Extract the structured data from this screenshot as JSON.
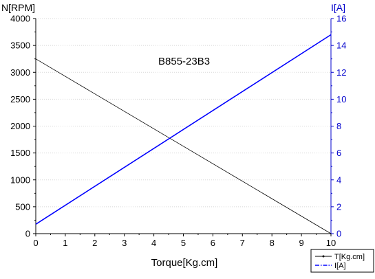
{
  "chart_data": {
    "type": "line",
    "title": "B855-23B3",
    "xlabel": "Torque[Kg.cm]",
    "ylabel": "N[RPM]",
    "y2label": "I[A]",
    "xlim": [
      0,
      10
    ],
    "ylim": [
      0,
      4000
    ],
    "y2lim": [
      0,
      16
    ],
    "x_ticks": [
      0,
      1,
      2,
      3,
      4,
      5,
      6,
      7,
      8,
      9,
      10
    ],
    "y_ticks": [
      0,
      500,
      1000,
      1500,
      2000,
      2500,
      3000,
      3500,
      4000
    ],
    "y2_ticks": [
      0,
      2,
      4,
      6,
      8,
      10,
      12,
      14,
      16
    ],
    "grid": true,
    "legend_position": "bottom-right",
    "series": [
      {
        "name": "T[Kg.cm]",
        "axis": "left",
        "color": "#000000",
        "x": [
          0,
          10
        ],
        "y": [
          3250,
          0
        ]
      },
      {
        "name": "I[A]",
        "axis": "right",
        "color": "#0000ff",
        "x": [
          0,
          10
        ],
        "y": [
          0.7,
          14.8
        ]
      }
    ]
  }
}
